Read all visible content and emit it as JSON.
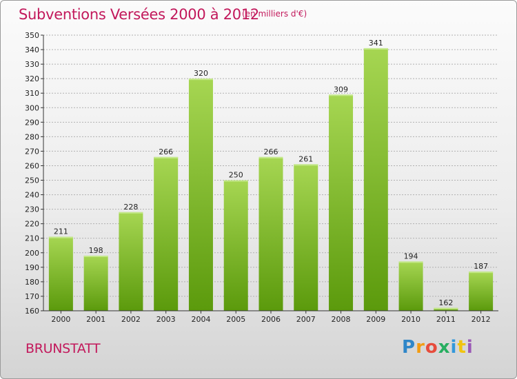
{
  "title": "Subventions Versées 2000 à 2012",
  "subtitle": "(en milliers d'€)",
  "commune": "BRUNSTATT",
  "logo": "Proxiti",
  "colors": {
    "accent": "#c2185b",
    "bar_top": "#9fd14a",
    "bar_bottom": "#5e9e0e",
    "grid": "#b0b0b0"
  },
  "chart_data": {
    "type": "bar",
    "title": "Subventions Versées 2000 à 2012",
    "subtitle": "(en milliers d'€)",
    "xlabel": "",
    "ylabel": "",
    "categories": [
      "2000",
      "2001",
      "2002",
      "2003",
      "2004",
      "2005",
      "2006",
      "2007",
      "2008",
      "2009",
      "2010",
      "2011",
      "2012"
    ],
    "values": [
      211,
      198,
      228,
      266,
      320,
      250,
      266,
      261,
      309,
      341,
      194,
      162,
      187
    ],
    "ylim": [
      160,
      350
    ],
    "ytick_step": 10,
    "grid": true,
    "legend": "none"
  }
}
